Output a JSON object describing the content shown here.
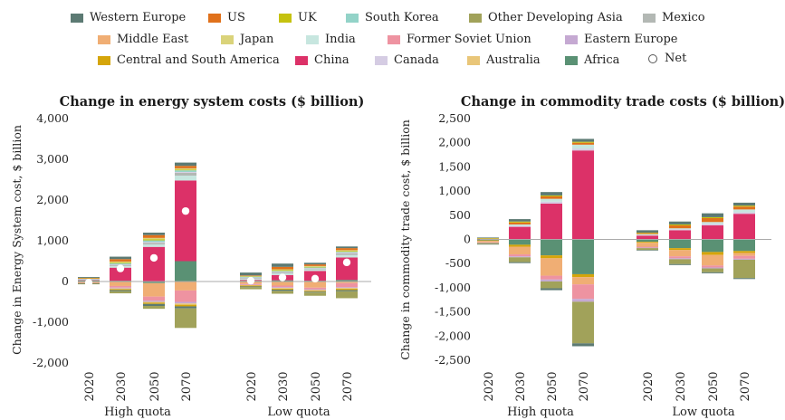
{
  "legend": [
    {
      "name": "Western Europe",
      "color": "#5c7a73"
    },
    {
      "name": "US",
      "color": "#e0711b"
    },
    {
      "name": "UK",
      "color": "#c5c20f"
    },
    {
      "name": "South Korea",
      "color": "#93d3c8"
    },
    {
      "name": "Other Developing Asia",
      "color": "#a1a25a"
    },
    {
      "name": "Mexico",
      "color": "#b3b8b4"
    },
    {
      "name": "Middle East",
      "color": "#f0ae74"
    },
    {
      "name": "Japan",
      "color": "#dad37a"
    },
    {
      "name": "India",
      "color": "#c7e6df"
    },
    {
      "name": "Former Soviet Union",
      "color": "#ee93a1"
    },
    {
      "name": "Eastern Europe",
      "color": "#c5a9d2"
    },
    {
      "name": "Central and South America",
      "color": "#d5a50a"
    },
    {
      "name": "China",
      "color": "#dc3168"
    },
    {
      "name": "Canada",
      "color": "#d5cce3"
    },
    {
      "name": "Australia",
      "color": "#e9c679"
    },
    {
      "name": "Africa",
      "color": "#5a9174"
    },
    {
      "name": "Net",
      "color": "#ffffff"
    }
  ],
  "chart_data": [
    {
      "type": "bar",
      "stacked": true,
      "title": "Change in energy system costs ($ billion)",
      "ylabel": "Change in Energy System cost, $ billion",
      "ylim": [
        -2000,
        4000
      ],
      "yticks": [
        4000,
        3000,
        2000,
        1000,
        0,
        -1000,
        -2000
      ],
      "ytick_labels": [
        "4,000",
        "3,000",
        "2,000",
        "1,000",
        "0",
        "-1,000",
        "-2,000"
      ],
      "categories": [
        "2020",
        "2030",
        "2050",
        "2070",
        "2020",
        "2030",
        "2050",
        "2070"
      ],
      "groups": [
        {
          "label": "High quota",
          "span": [
            0,
            3
          ]
        },
        {
          "label": "Low quota",
          "span": [
            4,
            7
          ]
        }
      ],
      "series": [
        {
          "name": "Africa",
          "values": [
            30,
            20,
            -40,
            500,
            20,
            30,
            20,
            40
          ]
        },
        {
          "name": "China",
          "values": [
            10,
            320,
            850,
            1980,
            20,
            130,
            240,
            550
          ]
        },
        {
          "name": "India",
          "values": [
            10,
            40,
            60,
            120,
            30,
            40,
            40,
            60
          ]
        },
        {
          "name": "Mexico",
          "values": [
            10,
            30,
            40,
            70,
            20,
            30,
            20,
            40
          ]
        },
        {
          "name": "Canada",
          "values": [
            5,
            10,
            20,
            20,
            10,
            10,
            10,
            20
          ]
        },
        {
          "name": "South Korea",
          "values": [
            10,
            30,
            40,
            40,
            20,
            20,
            20,
            20
          ]
        },
        {
          "name": "UK",
          "values": [
            5,
            20,
            30,
            20,
            10,
            20,
            10,
            20
          ]
        },
        {
          "name": "Japan",
          "values": [
            5,
            20,
            30,
            30,
            10,
            20,
            20,
            20
          ]
        },
        {
          "name": "US",
          "values": [
            5,
            60,
            70,
            60,
            10,
            60,
            40,
            50
          ]
        },
        {
          "name": "Western Europe",
          "values": [
            20,
            60,
            60,
            80,
            70,
            80,
            40,
            40
          ]
        },
        {
          "name": "Middle East",
          "values": [
            -20,
            -110,
            -330,
            -220,
            -60,
            -100,
            -150,
            -40
          ]
        },
        {
          "name": "Former Soviet Union",
          "values": [
            -10,
            -40,
            -100,
            -280,
            -20,
            -40,
            -40,
            -100
          ]
        },
        {
          "name": "Eastern Europe",
          "values": [
            -5,
            -20,
            -30,
            -40,
            -10,
            -20,
            -20,
            -20
          ]
        },
        {
          "name": "Australia",
          "values": [
            -5,
            -20,
            -20,
            -30,
            -10,
            -20,
            -20,
            -20
          ]
        },
        {
          "name": "Central and South America",
          "values": [
            -5,
            -20,
            -30,
            -40,
            -20,
            -20,
            -20,
            -30
          ]
        },
        {
          "name": "Western Europe",
          "values": [
            -10,
            -30,
            -50,
            -50,
            -20,
            -30,
            -20,
            -30
          ]
        },
        {
          "name": "Other Developing Asia",
          "values": [
            -10,
            -50,
            -70,
            -480,
            -50,
            -70,
            -80,
            -170
          ]
        }
      ],
      "net": {
        "name": "Net",
        "values": [
          -30,
          320,
          580,
          1730,
          20,
          100,
          70,
          470
        ]
      }
    },
    {
      "type": "bar",
      "stacked": true,
      "title": "Change in commodity trade costs ($ billion)",
      "ylabel": "Change in commodity trade cost, $ billion",
      "ylim": [
        -2500,
        2500
      ],
      "yticks": [
        2500,
        2000,
        1500,
        1000,
        500,
        0,
        -500,
        -1000,
        -1500,
        -2000,
        -2500
      ],
      "ytick_labels": [
        "2,500",
        "2,000",
        "1,500",
        "1,000",
        "500",
        "0",
        "-500",
        "-1,000",
        "-1,500",
        "-2,000",
        "-2,500"
      ],
      "categories": [
        "2020",
        "2030",
        "2050",
        "2070",
        "2020",
        "2030",
        "2050",
        "2070"
      ],
      "groups": [
        {
          "label": "High quota",
          "span": [
            0,
            3
          ]
        },
        {
          "label": "Low quota",
          "span": [
            4,
            7
          ]
        }
      ],
      "series": [
        {
          "name": "China",
          "values": [
            10,
            260,
            740,
            1840,
            80,
            190,
            290,
            530
          ]
        },
        {
          "name": "Canada",
          "values": [
            5,
            20,
            40,
            40,
            10,
            20,
            30,
            30
          ]
        },
        {
          "name": "India",
          "values": [
            5,
            30,
            60,
            80,
            20,
            20,
            40,
            60
          ]
        },
        {
          "name": "US",
          "values": [
            5,
            40,
            50,
            40,
            20,
            60,
            80,
            60
          ]
        },
        {
          "name": "UK",
          "values": [
            5,
            20,
            20,
            20,
            10,
            20,
            20,
            20
          ]
        },
        {
          "name": "Western Europe",
          "values": [
            10,
            50,
            70,
            60,
            50,
            60,
            80,
            60
          ]
        },
        {
          "name": "Africa",
          "values": [
            -20,
            -110,
            -330,
            -720,
            -50,
            -180,
            -260,
            -240
          ]
        },
        {
          "name": "Central and South America",
          "values": [
            -10,
            -40,
            -60,
            -60,
            -20,
            -40,
            -60,
            -40
          ]
        },
        {
          "name": "Middle East",
          "values": [
            -30,
            -160,
            -360,
            -150,
            -80,
            -130,
            -220,
            -60
          ]
        },
        {
          "name": "Former Soviet Union",
          "values": [
            -10,
            -40,
            -80,
            -300,
            -20,
            -40,
            -40,
            -60
          ]
        },
        {
          "name": "Eastern Europe",
          "values": [
            -5,
            -20,
            -40,
            -60,
            -10,
            -20,
            -20,
            -20
          ]
        },
        {
          "name": "Other Developing Asia",
          "values": [
            -20,
            -100,
            -140,
            -860,
            -40,
            -100,
            -80,
            -380
          ]
        },
        {
          "name": "Western Europe",
          "values": [
            -5,
            -20,
            -40,
            -60,
            -10,
            -20,
            -20,
            -20
          ]
        }
      ]
    }
  ]
}
